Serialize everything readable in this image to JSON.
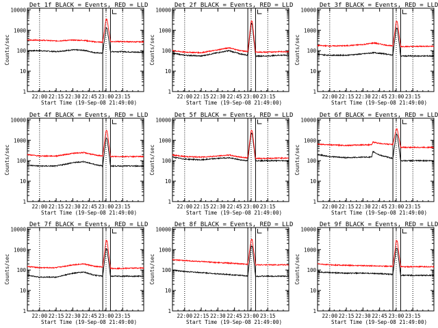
{
  "chart_data": [
    {
      "type": "line",
      "title": "Det 1f BLACK = Events, RED = LLD",
      "xlabel": "Start Time (19-Sep-08 21:49:00)",
      "ylabel": "Counts/sec",
      "yscale": "log",
      "ylim": [
        1,
        12000
      ],
      "xlim_minutes_after_start": [
        0,
        105
      ],
      "xticks": [
        "22:00",
        "22:15",
        "22:30",
        "22:45",
        "23:00",
        "23:15"
      ],
      "yticks": [
        "1",
        "10",
        "100",
        "1000",
        "10000"
      ],
      "vlines_dotted": [
        "22:00",
        "23:00",
        "23:15"
      ],
      "vlines_solid": [
        "22:57",
        "23:04"
      ],
      "series": [
        {
          "color": "#000000",
          "x": [
            "21:49",
            "22:00",
            "22:15",
            "22:30",
            "22:40",
            "22:50",
            "22:57",
            "23:00",
            "23:01",
            "23:04",
            "23:15",
            "23:25"
          ],
          "values": [
            100,
            100,
            90,
            110,
            105,
            80,
            75,
            1300,
            1200,
            90,
            90,
            85
          ]
        },
        {
          "color": "#ff0000",
          "x": [
            "21:49",
            "22:00",
            "22:15",
            "22:30",
            "22:40",
            "22:50",
            "22:57",
            "23:00",
            "23:01",
            "23:04",
            "23:15",
            "23:25"
          ],
          "values": [
            330,
            330,
            300,
            330,
            320,
            270,
            260,
            3500,
            3300,
            280,
            280,
            270
          ]
        }
      ]
    },
    {
      "type": "line",
      "title": "Det 2f BLACK = Events, RED = LLD",
      "xlabel": "Start Time (19-Sep-08 21:49:00)",
      "ylabel": "Counts/sec",
      "yscale": "log",
      "ylim": [
        1,
        12000
      ],
      "xlim_minutes_after_start": [
        0,
        105
      ],
      "xticks": [
        "22:00",
        "22:15",
        "22:30",
        "22:45",
        "23:00",
        "23:15"
      ],
      "yticks": [
        "1",
        "10",
        "100",
        "1000",
        "10000"
      ],
      "vlines_dotted": [
        "22:00",
        "23:00",
        "23:15"
      ],
      "vlines_solid": [
        "22:57",
        "23:04"
      ],
      "series": [
        {
          "color": "#000000",
          "x": [
            "21:49",
            "22:00",
            "22:15",
            "22:30",
            "22:40",
            "22:50",
            "22:57",
            "23:00",
            "23:01",
            "23:04",
            "23:15",
            "23:25"
          ],
          "values": [
            75,
            60,
            55,
            80,
            100,
            70,
            60,
            2200,
            2000,
            55,
            55,
            60
          ]
        },
        {
          "color": "#ff0000",
          "x": [
            "21:49",
            "22:00",
            "22:15",
            "22:30",
            "22:40",
            "22:50",
            "22:57",
            "23:00",
            "23:01",
            "23:04",
            "23:15",
            "23:25"
          ],
          "values": [
            100,
            85,
            80,
            110,
            140,
            100,
            90,
            2800,
            2600,
            85,
            85,
            90
          ]
        }
      ]
    },
    {
      "type": "line",
      "title": "Det 3f BLACK = Events, RED = LLD",
      "xlabel": "Start Time (19-Sep-08 21:49:00)",
      "ylabel": "Counts/sec",
      "yscale": "log",
      "ylim": [
        1,
        12000
      ],
      "xlim_minutes_after_start": [
        0,
        105
      ],
      "xticks": [
        "22:00",
        "22:15",
        "22:30",
        "22:45",
        "23:00",
        "23:15"
      ],
      "yticks": [
        "1",
        "10",
        "100",
        "1000",
        "10000"
      ],
      "vlines_dotted": [
        "22:00",
        "23:00",
        "23:15"
      ],
      "vlines_solid": [
        "22:57",
        "23:04"
      ],
      "series": [
        {
          "color": "#000000",
          "x": [
            "21:49",
            "22:00",
            "22:15",
            "22:30",
            "22:40",
            "22:50",
            "22:57",
            "23:00",
            "23:01",
            "23:04",
            "23:15",
            "23:25"
          ],
          "values": [
            65,
            60,
            60,
            70,
            80,
            70,
            60,
            1300,
            1200,
            55,
            55,
            55
          ]
        },
        {
          "color": "#ff0000",
          "x": [
            "21:49",
            "22:00",
            "22:15",
            "22:30",
            "22:40",
            "22:50",
            "22:57",
            "23:00",
            "23:01",
            "23:04",
            "23:15",
            "23:25"
          ],
          "values": [
            180,
            170,
            175,
            200,
            240,
            190,
            170,
            2800,
            2600,
            160,
            160,
            165
          ]
        }
      ]
    },
    {
      "type": "line",
      "title": "Det 4f BLACK = Events, RED = LLD",
      "xlabel": "Start Time (19-Sep-08 21:49:00)",
      "ylabel": "Counts/sec",
      "yscale": "log",
      "ylim": [
        1,
        12000
      ],
      "xlim_minutes_after_start": [
        0,
        105
      ],
      "xticks": [
        "22:00",
        "22:15",
        "22:30",
        "22:45",
        "23:00",
        "23:15"
      ],
      "yticks": [
        "1",
        "10",
        "100",
        "1000",
        "10000"
      ],
      "vlines_dotted": [
        "22:00",
        "23:00",
        "23:15"
      ],
      "vlines_solid": [
        "22:57",
        "23:04"
      ],
      "series": [
        {
          "color": "#000000",
          "x": [
            "21:49",
            "22:00",
            "22:15",
            "22:30",
            "22:40",
            "22:50",
            "22:57",
            "23:00",
            "23:01",
            "23:04",
            "23:15",
            "23:25"
          ],
          "values": [
            60,
            55,
            55,
            80,
            90,
            65,
            55,
            1300,
            1200,
            55,
            55,
            55
          ]
        },
        {
          "color": "#ff0000",
          "x": [
            "21:49",
            "22:00",
            "22:15",
            "22:30",
            "22:40",
            "22:50",
            "22:57",
            "23:00",
            "23:01",
            "23:04",
            "23:15",
            "23:25"
          ],
          "values": [
            200,
            170,
            170,
            230,
            250,
            190,
            170,
            3000,
            2800,
            160,
            160,
            160
          ]
        }
      ]
    },
    {
      "type": "line",
      "title": "Det 5f BLACK = Events, RED = LLD",
      "xlabel": "Start Time (19-Sep-08 21:49:00)",
      "ylabel": "Counts/sec",
      "yscale": "log",
      "ylim": [
        1,
        12000
      ],
      "xlim_minutes_after_start": [
        0,
        105
      ],
      "xticks": [
        "22:00",
        "22:15",
        "22:30",
        "22:45",
        "23:00",
        "23:15"
      ],
      "yticks": [
        "1",
        "10",
        "100",
        "1000",
        "10000"
      ],
      "vlines_dotted": [
        "22:00",
        "23:00",
        "23:15"
      ],
      "vlines_solid": [
        "22:57",
        "23:04"
      ],
      "series": [
        {
          "color": "#000000",
          "x": [
            "21:49",
            "22:00",
            "22:15",
            "22:30",
            "22:40",
            "22:50",
            "22:57",
            "23:00",
            "23:01",
            "23:04",
            "23:15",
            "23:25"
          ],
          "values": [
            150,
            120,
            110,
            130,
            140,
            110,
            100,
            2300,
            2100,
            100,
            100,
            100
          ]
        },
        {
          "color": "#ff0000",
          "x": [
            "21:49",
            "22:00",
            "22:15",
            "22:30",
            "22:40",
            "22:50",
            "22:57",
            "23:00",
            "23:01",
            "23:04",
            "23:15",
            "23:25"
          ],
          "values": [
            190,
            160,
            150,
            170,
            190,
            150,
            140,
            3000,
            2800,
            130,
            130,
            135
          ]
        }
      ]
    },
    {
      "type": "line",
      "title": "Det 6f BLACK = Events, RED = LLD",
      "xlabel": "Start Time (19-Sep-08 21:49:00)",
      "ylabel": "Counts/sec",
      "yscale": "log",
      "ylim": [
        1,
        12000
      ],
      "xlim_minutes_after_start": [
        0,
        105
      ],
      "xticks": [
        "22:00",
        "22:15",
        "22:30",
        "22:45",
        "23:00",
        "23:15"
      ],
      "yticks": [
        "1",
        "10",
        "100",
        "1000",
        "10000"
      ],
      "vlines_dotted": [
        "22:00",
        "23:00",
        "23:15"
      ],
      "vlines_solid": [
        "22:57",
        "23:04"
      ],
      "series": [
        {
          "color": "#000000",
          "x": [
            "21:49",
            "22:00",
            "22:15",
            "22:30",
            "22:38",
            "22:39",
            "22:45",
            "22:52",
            "22:57",
            "23:00",
            "23:01",
            "23:04",
            "23:15",
            "23:25"
          ],
          "values": [
            200,
            160,
            140,
            150,
            150,
            280,
            190,
            150,
            130,
            2000,
            1800,
            100,
            100,
            100
          ]
        },
        {
          "color": "#ff0000",
          "x": [
            "21:49",
            "22:00",
            "22:15",
            "22:30",
            "22:38",
            "22:39",
            "22:45",
            "22:52",
            "22:57",
            "23:00",
            "23:01",
            "23:04",
            "23:15",
            "23:25"
          ],
          "values": [
            650,
            600,
            560,
            600,
            600,
            820,
            700,
            650,
            620,
            3600,
            3400,
            450,
            450,
            450
          ]
        }
      ]
    },
    {
      "type": "line",
      "title": "Det 7f BLACK = Events, RED = LLD",
      "xlabel": "Start Time (19-Sep-08 21:49:00)",
      "ylabel": "Counts/sec",
      "yscale": "log",
      "ylim": [
        1,
        12000
      ],
      "xlim_minutes_after_start": [
        0,
        105
      ],
      "xticks": [
        "22:00",
        "22:15",
        "22:30",
        "22:45",
        "23:00",
        "23:15"
      ],
      "yticks": [
        "1",
        "10",
        "100",
        "1000",
        "10000"
      ],
      "vlines_dotted": [
        "22:00",
        "23:00",
        "23:15"
      ],
      "vlines_solid": [
        "22:57",
        "23:04"
      ],
      "series": [
        {
          "color": "#000000",
          "x": [
            "21:49",
            "22:00",
            "22:15",
            "22:30",
            "22:40",
            "22:50",
            "22:57",
            "23:00",
            "23:01",
            "23:04",
            "23:15",
            "23:25"
          ],
          "values": [
            55,
            45,
            45,
            70,
            80,
            55,
            50,
            1100,
            1000,
            50,
            50,
            50
          ]
        },
        {
          "color": "#ff0000",
          "x": [
            "21:49",
            "22:00",
            "22:15",
            "22:30",
            "22:40",
            "22:50",
            "22:57",
            "23:00",
            "23:01",
            "23:04",
            "23:15",
            "23:25"
          ],
          "values": [
            150,
            130,
            130,
            180,
            200,
            150,
            140,
            2800,
            2600,
            120,
            120,
            125
          ]
        }
      ]
    },
    {
      "type": "line",
      "title": "Det 8f BLACK = Events, RED = LLD",
      "xlabel": "Start Time (19-Sep-08 21:49:00)",
      "ylabel": "Counts/sec",
      "yscale": "log",
      "ylim": [
        1,
        12000
      ],
      "xlim_minutes_after_start": [
        0,
        105
      ],
      "xticks": [
        "22:00",
        "22:15",
        "22:30",
        "22:45",
        "23:00",
        "23:15"
      ],
      "yticks": [
        "1",
        "10",
        "100",
        "1000",
        "10000"
      ],
      "vlines_dotted": [
        "22:00",
        "23:00",
        "23:15"
      ],
      "vlines_solid": [
        "22:57",
        "23:04"
      ],
      "series": [
        {
          "color": "#000000",
          "x": [
            "21:49",
            "22:00",
            "22:15",
            "22:30",
            "22:40",
            "22:50",
            "22:57",
            "23:00",
            "23:01",
            "23:04",
            "23:15",
            "23:25"
          ],
          "values": [
            100,
            85,
            75,
            65,
            60,
            55,
            50,
            1500,
            1400,
            50,
            50,
            50
          ]
        },
        {
          "color": "#ff0000",
          "x": [
            "21:49",
            "22:00",
            "22:15",
            "22:30",
            "22:40",
            "22:50",
            "22:57",
            "23:00",
            "23:01",
            "23:04",
            "23:15",
            "23:25"
          ],
          "values": [
            320,
            290,
            260,
            230,
            220,
            200,
            190,
            3200,
            3000,
            180,
            180,
            180
          ]
        }
      ]
    },
    {
      "type": "line",
      "title": "Det 9f BLACK = Events, RED = LLD",
      "xlabel": "Start Time (19-Sep-08 21:49:00)",
      "ylabel": "Counts/sec",
      "yscale": "log",
      "ylim": [
        1,
        12000
      ],
      "xlim_minutes_after_start": [
        0,
        105
      ],
      "xticks": [
        "22:00",
        "22:15",
        "22:30",
        "22:45",
        "23:00",
        "23:15"
      ],
      "yticks": [
        "1",
        "10",
        "100",
        "1000",
        "10000"
      ],
      "vlines_dotted": [
        "22:00",
        "23:00",
        "23:15"
      ],
      "vlines_solid": [
        "22:57",
        "23:04"
      ],
      "series": [
        {
          "color": "#000000",
          "x": [
            "21:49",
            "22:00",
            "22:15",
            "22:30",
            "22:40",
            "22:50",
            "22:57",
            "23:00",
            "23:01",
            "23:04",
            "23:15",
            "23:25"
          ],
          "values": [
            80,
            75,
            70,
            70,
            68,
            65,
            60,
            1200,
            1100,
            55,
            55,
            55
          ]
        },
        {
          "color": "#ff0000",
          "x": [
            "21:49",
            "22:00",
            "22:15",
            "22:30",
            "22:40",
            "22:50",
            "22:57",
            "23:00",
            "23:01",
            "23:04",
            "23:15",
            "23:25"
          ],
          "values": [
            200,
            180,
            170,
            165,
            160,
            155,
            150,
            2800,
            2600,
            145,
            145,
            145
          ]
        }
      ]
    }
  ]
}
